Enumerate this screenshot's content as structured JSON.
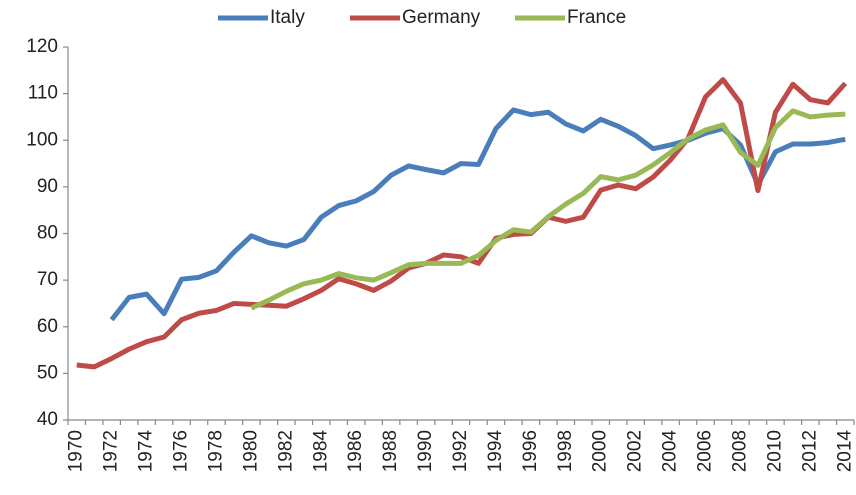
{
  "chart_data": {
    "type": "line",
    "categories": [
      "1970",
      null,
      "1972",
      null,
      "1974",
      null,
      "1976",
      null,
      "1978",
      null,
      "1980",
      null,
      "1982",
      null,
      "1984",
      null,
      "1986",
      null,
      "1988",
      null,
      "1990",
      null,
      "1992",
      null,
      "1994",
      null,
      "1996",
      null,
      "1998",
      null,
      "2000",
      null,
      "2002",
      null,
      "2004",
      null,
      "2006",
      null,
      "2008",
      null,
      "2010",
      null,
      "2012",
      null,
      "2014"
    ],
    "series": [
      {
        "name": "Italy",
        "color": "#4a7ebb",
        "values": [
          null,
          null,
          61.5,
          66.3,
          67,
          62.8,
          70.2,
          70.6,
          72,
          76,
          79.5,
          78,
          77.3,
          78.7,
          83.5,
          86,
          87,
          89,
          92.5,
          94.5,
          93.7,
          93,
          95,
          94.8,
          102.5,
          106.5,
          105.5,
          106,
          103.5,
          102,
          104.5,
          103,
          101,
          98.2,
          99,
          100,
          101.5,
          102.5,
          99,
          90.5,
          97.5,
          99.2,
          99.2,
          99.5,
          100.2
        ]
      },
      {
        "name": "Germany",
        "color": "#be4b48",
        "values": [
          51.8,
          51.4,
          53.2,
          55.2,
          56.8,
          57.8,
          61.5,
          62.9,
          63.5,
          65,
          64.8,
          64.6,
          64.4,
          66,
          67.8,
          70.3,
          69.2,
          67.8,
          69.8,
          72.6,
          73.6,
          75.4,
          75,
          73.6,
          79,
          79.8,
          80,
          83.5,
          82.6,
          83.5,
          89.3,
          90.4,
          89.6,
          92.1,
          95.8,
          100.4,
          109.3,
          113,
          108,
          89.2,
          106,
          112,
          108.7,
          108,
          112.2
        ]
      },
      {
        "name": "France",
        "color": "#98b954",
        "values": [
          null,
          null,
          null,
          null,
          null,
          null,
          null,
          null,
          null,
          null,
          64,
          65.7,
          67.6,
          69.2,
          70,
          71.4,
          70.5,
          70,
          71.6,
          73.3,
          73.6,
          73.6,
          73.6,
          75.3,
          78.5,
          80.8,
          80.3,
          83.6,
          86.3,
          88.6,
          92.2,
          91.5,
          92.5,
          94.7,
          97.4,
          100.3,
          102.2,
          103.3,
          97.4,
          94.6,
          102.7,
          106.3,
          105,
          105.4,
          105.6
        ]
      }
    ],
    "ylim": [
      40,
      120
    ],
    "yticks": [
      40,
      50,
      60,
      70,
      80,
      90,
      100,
      110,
      120
    ],
    "grid": false,
    "legend": "top"
  }
}
